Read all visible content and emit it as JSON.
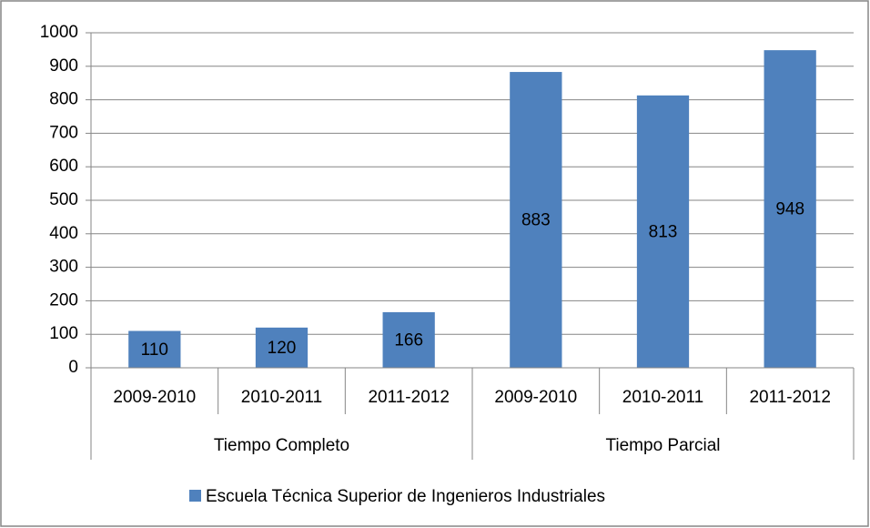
{
  "chart_data": {
    "type": "bar",
    "groups": [
      {
        "name": "Tiempo Completo",
        "categories": [
          "2009-2010",
          "2010-2011",
          "2011-2012"
        ]
      },
      {
        "name": "Tiempo Parcial",
        "categories": [
          "2009-2010",
          "2010-2011",
          "2011-2012"
        ]
      }
    ],
    "series": [
      {
        "name": "Escuela Técnica Superior de Ingenieros Industriales",
        "color": "#4f81bd",
        "values": [
          110,
          120,
          166,
          883,
          813,
          948
        ]
      }
    ],
    "ylim": [
      0,
      1000
    ],
    "yticks": [
      0,
      100,
      200,
      300,
      400,
      500,
      600,
      700,
      800,
      900,
      1000
    ],
    "grid": true,
    "legend": "bottom"
  }
}
